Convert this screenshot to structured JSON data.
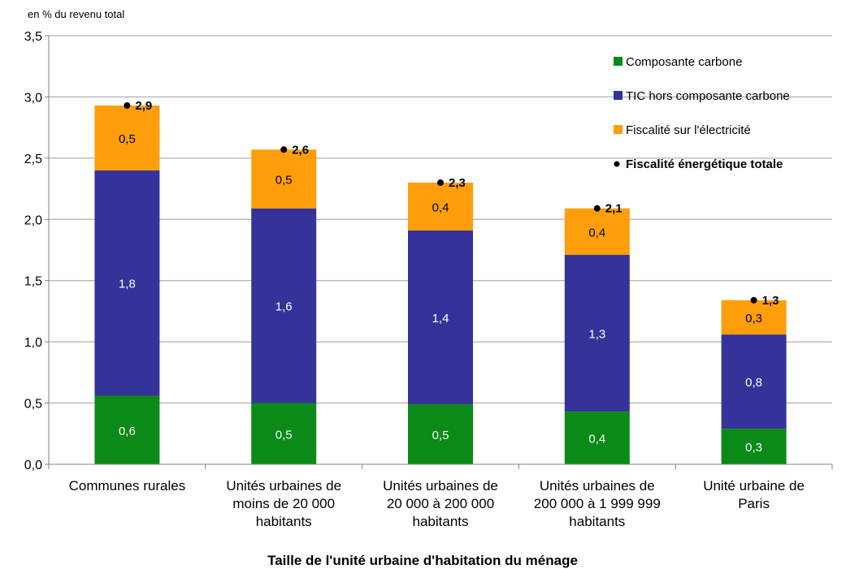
{
  "chart_data": {
    "type": "bar",
    "stacked": true,
    "unit_label": "en % du revenu total",
    "xlabel": "Taille de l'unité urbaine d'habitation du ménage",
    "ylim": [
      0,
      3.5
    ],
    "yticks": [
      "0,0",
      "0,5",
      "1,0",
      "1,5",
      "2,0",
      "2,5",
      "3,0",
      "3,5"
    ],
    "grid": true,
    "legend_position": "top-right",
    "categories": [
      [
        "Communes rurales"
      ],
      [
        "Unités urbaines de",
        "moins de 20 000",
        "habitants"
      ],
      [
        "Unités urbaines de",
        "20 000 à 200 000",
        "habitants"
      ],
      [
        "Unités urbaines de",
        "200 000 à 1 999 999",
        "habitants"
      ],
      [
        "Unité urbaine de",
        "Paris"
      ]
    ],
    "series": [
      {
        "name": "Composante carbone",
        "color": "#0b8a17",
        "label_color": "#ffffff",
        "values": [
          0.56,
          0.5,
          0.49,
          0.43,
          0.29
        ],
        "labels": [
          "0,6",
          "0,5",
          "0,5",
          "0,4",
          "0,3"
        ]
      },
      {
        "name": "TIC hors composante carbone",
        "color": "#35339a",
        "label_color": "#ffffff",
        "values": [
          1.84,
          1.59,
          1.42,
          1.28,
          0.77
        ],
        "labels": [
          "1,8",
          "1,6",
          "1,4",
          "1,3",
          "0,8"
        ]
      },
      {
        "name": "Fiscalité sur l'électricité",
        "color": "#ff9e0a",
        "label_color": "#000000",
        "values": [
          0.53,
          0.48,
          0.39,
          0.38,
          0.28
        ],
        "labels": [
          "0,5",
          "0,5",
          "0,4",
          "0,4",
          "0,3"
        ]
      }
    ],
    "totals": {
      "name": "Fiscalité énergétique totale",
      "values": [
        2.93,
        2.57,
        2.3,
        2.09,
        1.34
      ],
      "labels": [
        "2,9",
        "2,6",
        "2,3",
        "2,1",
        "1,3"
      ]
    }
  }
}
